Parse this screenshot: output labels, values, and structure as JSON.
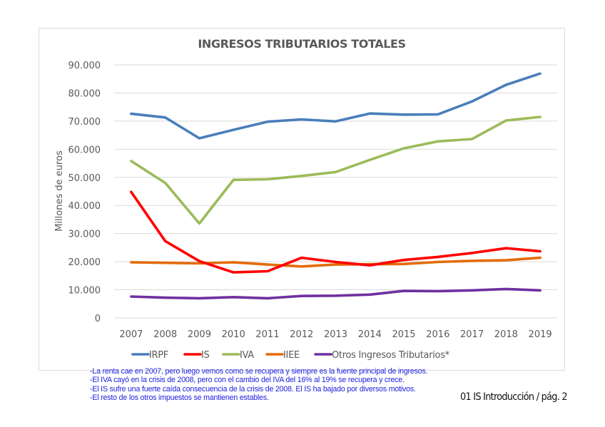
{
  "chart_data": {
    "type": "line",
    "title": "INGRESOS TRIBUTARIOS TOTALES",
    "xlabel": "",
    "ylabel": "Millones de euros",
    "ylim": [
      0,
      90000
    ],
    "yticks": [
      0,
      10000,
      20000,
      30000,
      40000,
      50000,
      60000,
      70000,
      80000,
      90000
    ],
    "ytick_labels": [
      "0",
      "10.000",
      "20.000",
      "30.000",
      "40.000",
      "50.000",
      "60.000",
      "70.000",
      "80.000",
      "90.000"
    ],
    "grid": true,
    "legend_position": "bottom",
    "categories": [
      "2007",
      "2008",
      "2009",
      "2010",
      "2011",
      "2012",
      "2013",
      "2014",
      "2015",
      "2016",
      "2017",
      "2018",
      "2019"
    ],
    "series": [
      {
        "name": "IRPF",
        "color": "#4a7ebb",
        "values": [
          72600,
          71300,
          63900,
          66900,
          69800,
          70600,
          69900,
          72700,
          72300,
          72400,
          77000,
          82900,
          86900
        ]
      },
      {
        "name": "IS",
        "color": "#ff0000",
        "values": [
          44800,
          27300,
          20200,
          16200,
          16600,
          21400,
          19900,
          18700,
          20600,
          21700,
          23100,
          24800,
          23700
        ]
      },
      {
        "name": "IVA",
        "color": "#9bbb59",
        "values": [
          55800,
          48000,
          33600,
          49100,
          49300,
          50500,
          51900,
          56200,
          60300,
          62800,
          63600,
          70200,
          71500
        ]
      },
      {
        "name": "IIEE",
        "color": "#e36c09",
        "values": [
          19800,
          19600,
          19400,
          19800,
          19000,
          18300,
          19000,
          19100,
          19200,
          19900,
          20300,
          20500,
          21400
        ]
      },
      {
        "name": "Otros Ingresos Tributarios*",
        "color": "#7030a0",
        "values": [
          7600,
          7200,
          7000,
          7400,
          7000,
          7800,
          7900,
          8300,
          9600,
          9500,
          9800,
          10300,
          9800
        ]
      }
    ]
  },
  "notes": [
    "-La renta cae en 2007, pero luego vemos como se recupera y siempre es la fuente principal de ingresos.",
    "-El IVA cayó en la crisis de 2008, pero con el cambio del IVA del 16% al 19% se recupera y crece.",
    "-El IS sufre una fuerte caída consecuencia de la crisis de 2008. El IS ha bajado por diversos motivos.",
    "-El resto de los otros impuestos se mantienen estables."
  ],
  "footer": {
    "page_label": "01 IS Introducción / pág. 2"
  }
}
